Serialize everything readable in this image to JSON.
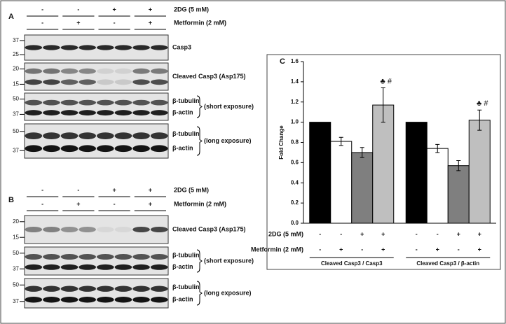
{
  "panels": [
    {
      "label": "A",
      "conditions": [
        {
          "name": "2DG (5 mM)",
          "signs": [
            "-",
            "-",
            "+",
            "+"
          ]
        },
        {
          "name": "Metformin (2 mM)",
          "signs": [
            "-",
            "+",
            "-",
            "+"
          ]
        }
      ],
      "blots": [
        {
          "markers": [
            "37",
            "25"
          ],
          "labels": [
            "Casp3"
          ]
        },
        {
          "markers": [
            "20",
            "15"
          ],
          "labels": [
            "Cleaved Casp3 (Asp175)"
          ]
        },
        {
          "markers": [
            "50",
            "37"
          ],
          "labels": [
            "β-tubulin",
            "β-actin"
          ],
          "exposure": "(short exposure)"
        },
        {
          "markers": [
            "50",
            "37"
          ],
          "labels": [
            "β-tubulin",
            "β-actin"
          ],
          "exposure": "(long exposure)"
        }
      ]
    },
    {
      "label": "B",
      "conditions": [
        {
          "name": "2DG (5 mM)",
          "signs": [
            "-",
            "-",
            "+",
            "+"
          ]
        },
        {
          "name": "Metformin (2 mM)",
          "signs": [
            "-",
            "+",
            "-",
            "+"
          ]
        }
      ],
      "blots": [
        {
          "markers": [
            "20",
            "15"
          ],
          "labels": [
            "Cleaved Casp3 (Asp175)"
          ]
        },
        {
          "markers": [
            "50",
            "37"
          ],
          "labels": [
            "β-tubulin",
            "β-actin"
          ],
          "exposure": "(short exposure)"
        },
        {
          "markers": [
            "50",
            "37"
          ],
          "labels": [
            "β-tubulin",
            "β-actin"
          ],
          "exposure": "(long exposure)"
        }
      ]
    }
  ],
  "chart_data": {
    "type": "bar",
    "label": "C",
    "y_label": "Fold Change",
    "categories": [
      "Cleaved Casp3 / Casp3",
      "Cleaved Casp3 / β-actin"
    ],
    "series": [
      {
        "color": "#000000",
        "values": [
          1.0,
          1.0
        ],
        "errors": [
          null,
          null
        ]
      },
      {
        "color": "#ffffff",
        "values": [
          0.81,
          0.74
        ],
        "errors": [
          0.04,
          0.04
        ]
      },
      {
        "color": "#7f7f7f",
        "values": [
          0.7,
          0.57
        ],
        "errors": [
          0.05,
          0.05
        ]
      },
      {
        "color": "#bfbfbf",
        "values": [
          1.17,
          1.02
        ],
        "errors": [
          0.17,
          0.1
        ],
        "annotations": [
          "♣ #",
          "♣ #"
        ]
      }
    ],
    "ylim": [
      0,
      1.6
    ],
    "yticks": [
      {
        "value": 0,
        "label": "0.0"
      },
      {
        "value": 0.2,
        "label": "0.2"
      },
      {
        "value": 0.4,
        "label": "0.4"
      },
      {
        "value": 0.6,
        "label": "0.6"
      },
      {
        "value": 0.8,
        "label": "0.8"
      },
      {
        "value": 1.0,
        "label": "1.0"
      },
      {
        "value": 1.2,
        "label": "1.2"
      },
      {
        "value": 1.4,
        "label": "1.4"
      },
      {
        "value": 1.6,
        "label": "1.6"
      }
    ],
    "conditions": [
      {
        "name": "2DG (5 mM)",
        "signs": [
          "-",
          "-",
          "+",
          "+",
          "-",
          "-",
          "+",
          "+"
        ]
      },
      {
        "name": "Metformin (2 mM)",
        "signs": [
          "-",
          "+",
          "-",
          "+",
          "-",
          "+",
          "-",
          "+"
        ]
      }
    ]
  }
}
